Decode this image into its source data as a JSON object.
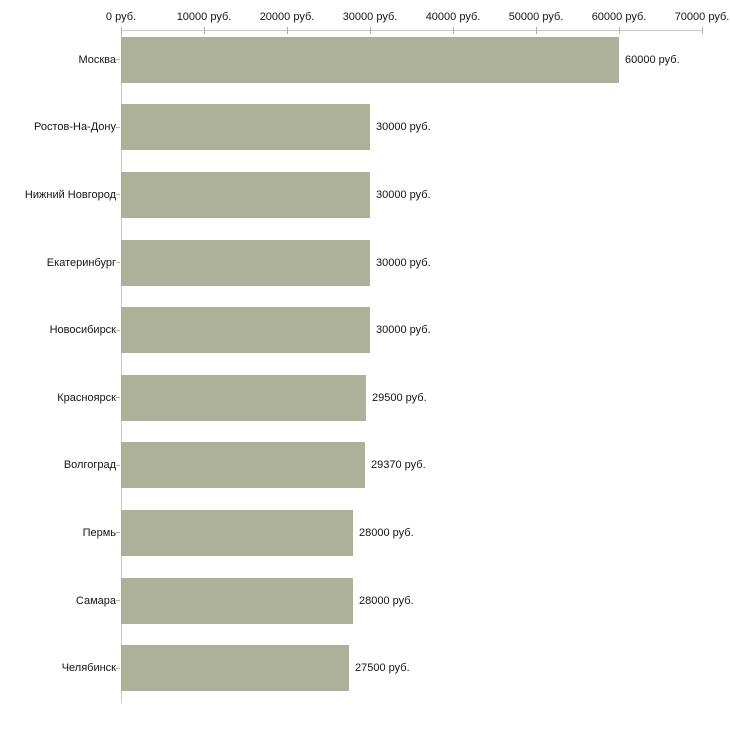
{
  "chart_data": {
    "type": "bar",
    "orientation": "horizontal",
    "title": "",
    "xlabel": "",
    "ylabel": "",
    "unit": "руб.",
    "categories": [
      "Москва",
      "Ростов-На-Дону",
      "Нижний Новгород",
      "Екатеринбург",
      "Новосибирск",
      "Красноярск",
      "Волгоград",
      "Пермь",
      "Самара",
      "Челябинск"
    ],
    "values": [
      60000,
      30000,
      30000,
      30000,
      30000,
      29500,
      29370,
      28000,
      28000,
      27500
    ],
    "value_labels": [
      "60000 руб.",
      "30000 руб.",
      "30000 руб.",
      "30000 руб.",
      "30000 руб.",
      "29500 руб.",
      "29370 руб.",
      "28000 руб.",
      "28000 руб.",
      "27500 руб."
    ],
    "x_ticks": [
      0,
      10000,
      20000,
      30000,
      40000,
      50000,
      60000,
      70000
    ],
    "x_tick_labels": [
      "0 руб.",
      "10000 руб.",
      "20000 руб.",
      "30000 руб.",
      "40000 руб.",
      "50000 руб.",
      "60000 руб.",
      "70000 руб."
    ],
    "xlim": [
      0,
      70000
    ],
    "grid": false,
    "legend": false,
    "colors": {
      "bar_fill": "#acb198",
      "axis_line": "#c9c9c9",
      "tick_mark": "#b5b78a",
      "text": "#141414",
      "background": "#ffffff"
    }
  }
}
